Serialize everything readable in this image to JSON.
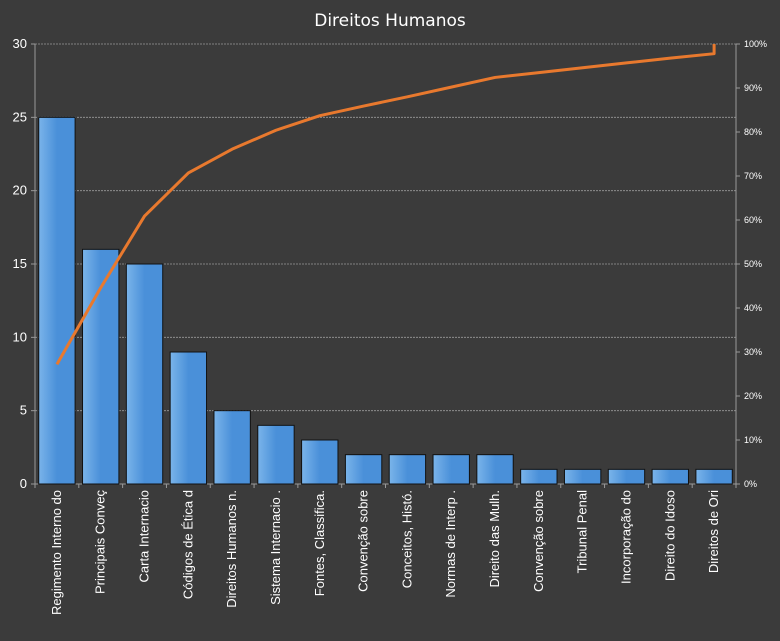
{
  "chart_data": {
    "type": "bar",
    "title": "Direitos Humanos",
    "categories": [
      "Regimento Interno do",
      "Principais Conveç",
      "Carta Internacio",
      "Códigos de Ética d",
      "Direitos Humanos n.",
      "Sistema Internacio .",
      "Fontes, Classifica.",
      "Convenção sobre",
      "Conceitos, Histó.",
      "Normas de Interp .",
      "Direito das Mulh.",
      "Convenção sobre",
      "Tribunal Penal",
      "Incorporação do",
      "Direito do Idoso",
      "Direitos de Ori"
    ],
    "series": [
      {
        "type": "bar",
        "values": [
          25,
          16,
          15,
          9,
          5,
          4,
          3,
          2,
          2,
          2,
          2,
          1,
          1,
          1,
          1,
          1
        ]
      },
      {
        "type": "line",
        "axis": "right",
        "values": [
          27.2,
          44.6,
          60.9,
          70.7,
          76.1,
          80.4,
          83.7,
          85.9,
          88.0,
          90.2,
          92.4,
          93.5,
          94.6,
          95.7,
          96.8,
          97.8
        ]
      }
    ],
    "ylim": [
      0,
      30
    ],
    "yticks": [
      "0",
      "5",
      "10",
      "15",
      "20",
      "25",
      "30"
    ],
    "y2lim": [
      0,
      100
    ],
    "y2ticks": [
      "0%",
      "10%",
      "20%",
      "30%",
      "40%",
      "50%",
      "60%",
      "70%",
      "80%",
      "90%",
      "100%"
    ],
    "grid": true,
    "colors": {
      "background": "#3b3b3b",
      "bar_fill": "#4a90d9",
      "bar_highlight": "#7ab4ea",
      "line": "#e8792e",
      "grid": "#9a9a9a",
      "text": "#ffffff"
    }
  }
}
